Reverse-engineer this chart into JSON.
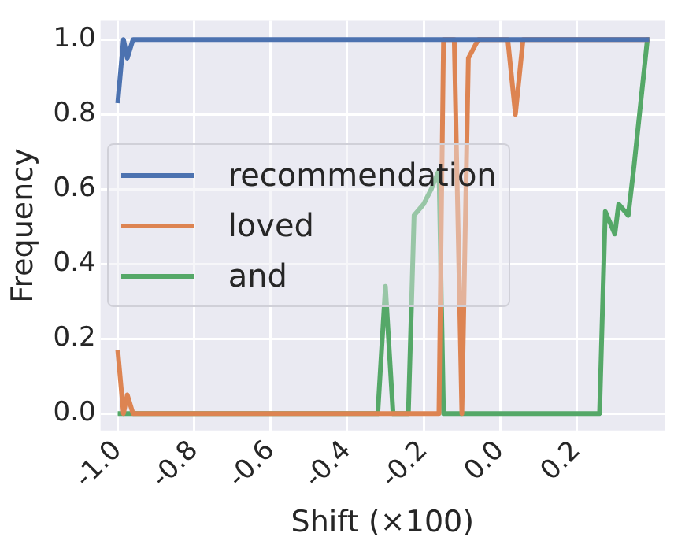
{
  "chart_data": {
    "type": "line",
    "xlabel": "Shift (×100)",
    "ylabel": "Frequency",
    "xlim": [
      -1.045,
      0.43
    ],
    "ylim": [
      -0.045,
      1.05
    ],
    "xticks": [
      {
        "value": -1,
        "label": "-1.0"
      },
      -0.8,
      -0.6,
      -0.4,
      -0.2,
      {
        "value": 0,
        "label": "0.0"
      },
      0.2
    ],
    "yticks": [
      {
        "value": 0,
        "label": "0.0"
      },
      0.2,
      0.4,
      0.6,
      0.8,
      {
        "value": 1,
        "label": "1.0"
      }
    ],
    "grid": true,
    "legend": "left",
    "marker": "none",
    "line_style": "solid",
    "series": [
      {
        "name": "recommendation",
        "color": "#4c72b0",
        "x": [
          -1.0,
          -0.985,
          -0.975,
          -0.96,
          0.39
        ],
        "values": [
          0.83,
          1.0,
          0.95,
          1.0,
          1.0
        ]
      },
      {
        "name": "loved",
        "color": "#dd8452",
        "x": [
          -1.0,
          -0.985,
          -0.975,
          -0.96,
          -0.16,
          -0.148,
          -0.12,
          -0.1,
          -0.083,
          -0.057,
          0.02,
          0.04,
          0.06,
          0.39
        ],
        "values": [
          0.17,
          0.0,
          0.05,
          0.0,
          0.0,
          1.0,
          1.0,
          0.0,
          0.95,
          1.0,
          1.0,
          0.8,
          1.0,
          1.0
        ]
      },
      {
        "name": "and",
        "color": "#55a868",
        "x": [
          -1.0,
          -0.32,
          -0.3,
          -0.28,
          -0.24,
          -0.225,
          -0.2,
          -0.18,
          -0.16,
          -0.148,
          0.26,
          0.275,
          0.3,
          0.31,
          0.335,
          0.35,
          0.385,
          0.39
        ],
        "values": [
          0.0,
          0.0,
          0.34,
          0.0,
          0.0,
          0.53,
          0.56,
          0.6,
          0.65,
          0.0,
          0.0,
          0.54,
          0.48,
          0.56,
          0.53,
          0.66,
          1.0,
          1.0
        ]
      }
    ]
  }
}
